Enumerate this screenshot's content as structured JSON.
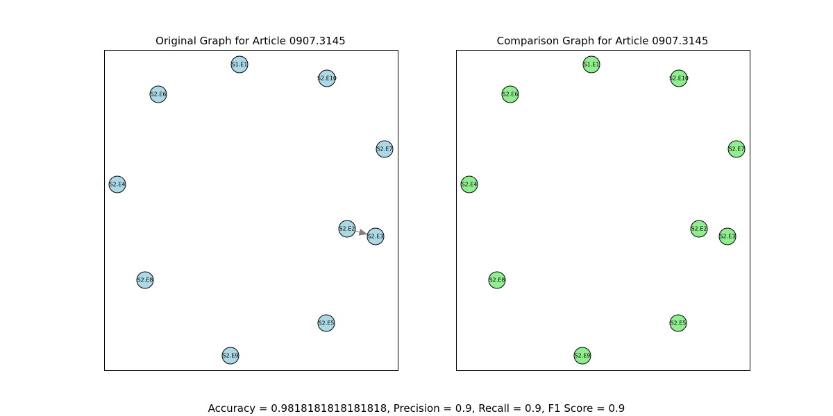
{
  "panels": [
    {
      "title": "Original Graph for Article 0907.3145",
      "color": "#add8e6",
      "nodes": [
        "S1.E1",
        "S2.E10",
        "S2.E6",
        "S2.E7",
        "S2.E4",
        "S2.E2",
        "S2.E3",
        "S2.E8",
        "S2.E5",
        "S2.E9"
      ]
    },
    {
      "title": "Comparison Graph for Article 0907.3145",
      "color": "#90ee90",
      "nodes": [
        "S1.E1",
        "S2.E10",
        "S2.E6",
        "S2.E7",
        "S2.E4",
        "S2.E2",
        "S2.E3",
        "S2.E8",
        "S2.E5",
        "S2.E9"
      ]
    }
  ],
  "footer": "Accuracy = 0.9818181818181818, Precision = 0.9, Recall = 0.9, F1 Score = 0.9"
}
